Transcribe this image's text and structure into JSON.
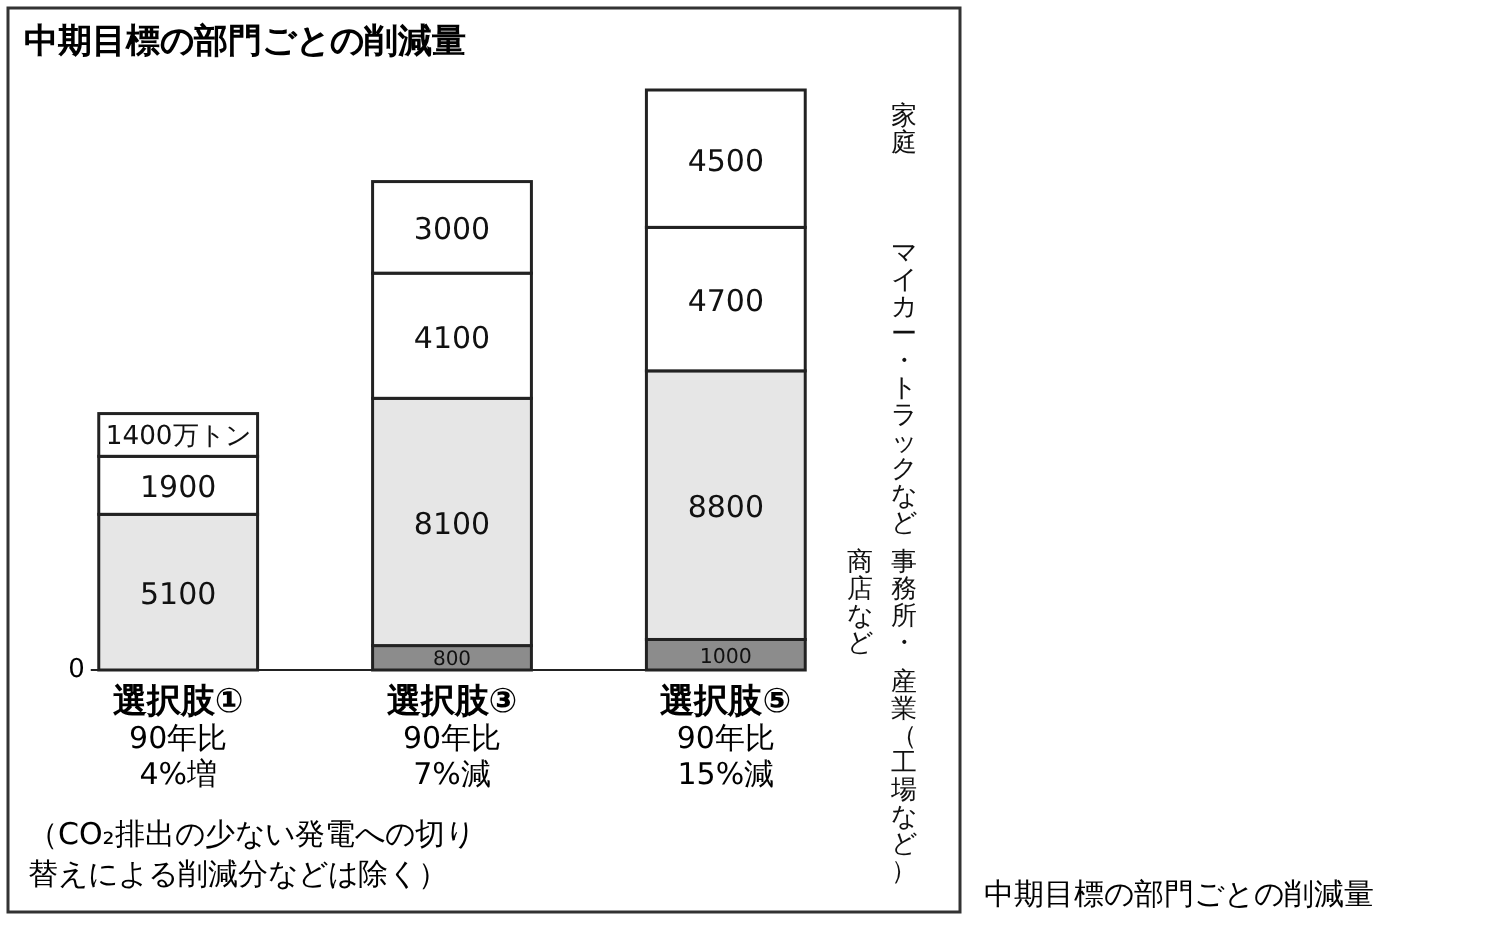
{
  "chart_data": {
    "type": "bar",
    "title": "中期目標の部門ごとの削減量",
    "categories": [
      "選択肢①90年比4%増",
      "選択肢③90年比7%減",
      "選択肢⑤90年比15%減"
    ],
    "stacked": true,
    "series": [
      {
        "name": "産業（工場など）",
        "color": "#8c8c8c",
        "values": [
          null,
          800,
          1000
        ],
        "value_labels": [
          null,
          "800",
          "1000"
        ]
      },
      {
        "name": "事務所・商店など",
        "color": "#e6e6e6",
        "values": [
          5100,
          8100,
          8800
        ],
        "value_labels": [
          "5100",
          "8100",
          "8800"
        ]
      },
      {
        "name": "マイカー・トラックなど",
        "color": "#ffffff",
        "values": [
          1900,
          4100,
          4700
        ],
        "value_labels": [
          "1900",
          "4100",
          "4700"
        ]
      },
      {
        "name": "家庭",
        "color": "#ffffff",
        "values": [
          1400,
          3000,
          4500
        ],
        "value_labels": [
          "1400万トン",
          "3000",
          "4500"
        ]
      }
    ],
    "ylim": [
      0,
      19000
    ],
    "legend": "right",
    "annotations": [
      "0",
      "（CO₂排出の少ない発電への切り替えによる削減分などは除く）",
      "中期目標の部門ごとの削減量"
    ]
  }
}
